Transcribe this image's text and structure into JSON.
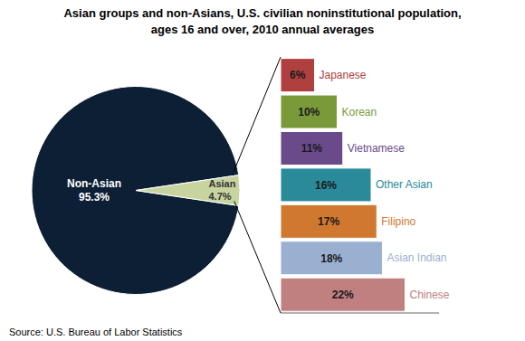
{
  "chart_data": [
    {
      "type": "pie",
      "title": "Asian groups and non-Asians, U.S. civilian noninstitutional population,\nages 16 and over, 2010 annual averages",
      "annotations": [
        "Source: U.S. Bureau of Labor Statistics"
      ],
      "categories": [
        "Non-Asian",
        "Asian"
      ],
      "values": [
        95.3,
        4.7
      ],
      "value_labels": [
        "95.3%",
        "4.7%"
      ],
      "colors": [
        "#0d1f35",
        "#c8d4a0"
      ],
      "data_labels": true
    },
    {
      "type": "bar",
      "orientation": "horizontal",
      "categories": [
        "Japanese",
        "Korean",
        "Vietnamese",
        "Other Asian",
        "Filipino",
        "Asian Indian",
        "Chinese"
      ],
      "values": [
        6,
        10,
        11,
        16,
        17,
        18,
        22
      ],
      "value_labels": [
        "6%",
        "10%",
        "11%",
        "16%",
        "17%",
        "18%",
        "22%"
      ],
      "colors": [
        "#b04040",
        "#7a9a3a",
        "#6a4a8a",
        "#2a8a9a",
        "#d07830",
        "#9ab0d0",
        "#c08080"
      ],
      "data_labels": true,
      "xlim": [
        0,
        28
      ],
      "tick_labels": false
    }
  ]
}
